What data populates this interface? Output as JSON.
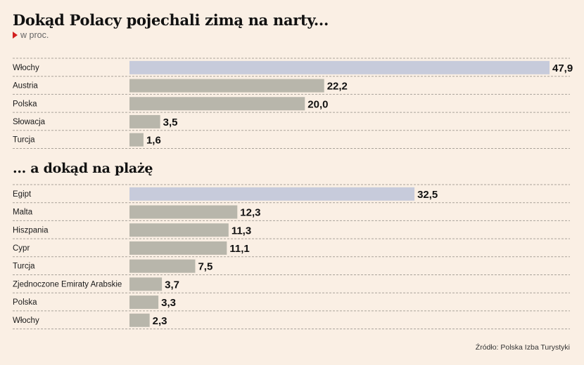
{
  "title": "Dokąd Polacy pojechali zimą na narty...",
  "subtitle": "w proc.",
  "source": "Źródło: Polska Izba Turystyki",
  "colors": {
    "highlight": "#c7cbdb",
    "bar": "#b8b6ab",
    "background": "#faefe4",
    "marker": "#d21f1f"
  },
  "chart_data": [
    {
      "type": "bar",
      "orientation": "horizontal",
      "title": "Dokąd Polacy pojechali zimą na narty...",
      "unit": "w proc.",
      "categories": [
        "Włochy",
        "Austria",
        "Polska",
        "Słowacja",
        "Turcja"
      ],
      "values": [
        47.9,
        22.2,
        20.0,
        3.5,
        1.6
      ],
      "labels": [
        "47,9",
        "22,2",
        "20,0",
        "3,5",
        "1,6"
      ],
      "highlight_index": 0
    },
    {
      "type": "bar",
      "orientation": "horizontal",
      "title": "... a dokąd na plażę",
      "unit": "w proc.",
      "categories": [
        "Egipt",
        "Malta",
        "Hiszpania",
        "Cypr",
        "Turcja",
        "Zjednoczone Emiraty Arabskie",
        "Polska",
        "Włochy"
      ],
      "values": [
        32.5,
        12.3,
        11.3,
        11.1,
        7.5,
        3.7,
        3.3,
        2.3
      ],
      "labels": [
        "32,5",
        "12,3",
        "11,3",
        "11,1",
        "7,5",
        "3,7",
        "3,3",
        "2,3"
      ],
      "highlight_index": 0
    }
  ]
}
